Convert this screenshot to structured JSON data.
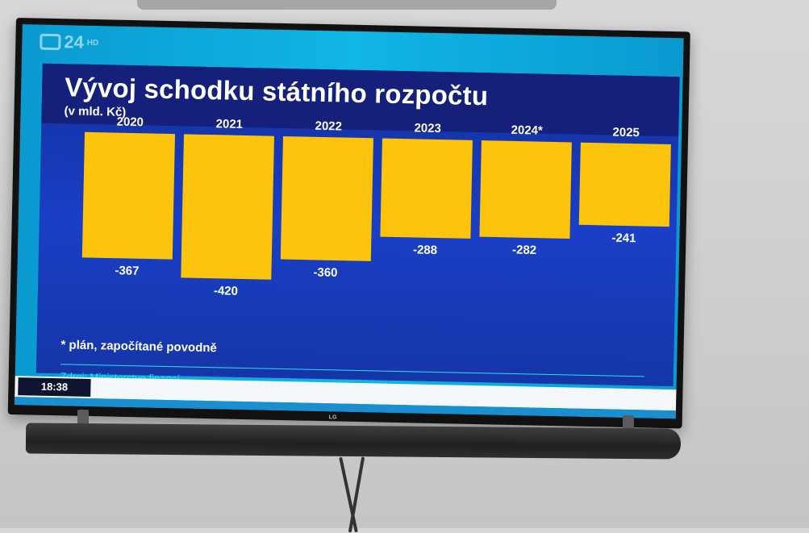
{
  "channel": {
    "logo_text": "24",
    "hd_label": "HD"
  },
  "graphic": {
    "title": "Vývoj schodku státního rozpočtu",
    "subtitle": "(v mld. Kč)",
    "footnote": "* plán, započítané povodně",
    "source": "Zdroj: Ministerstvo financí"
  },
  "ticker": {
    "time": "18:38"
  },
  "colors": {
    "bar": "#fcc40c",
    "panel": "#1a3fc6",
    "title_band": "#14207a",
    "accent_cyan": "#2de0f0"
  },
  "chart_data": {
    "type": "bar",
    "title": "Vývoj schodku státního rozpočtu",
    "subtitle": "(v mld. Kč)",
    "categories": [
      "2020",
      "2021",
      "2022",
      "2023",
      "2024*",
      "2025"
    ],
    "values": [
      -367,
      -420,
      -360,
      -288,
      -282,
      -241
    ],
    "value_labels": [
      "-367",
      "-420",
      "-360",
      "-288",
      "-282",
      "-241"
    ],
    "ylim": [
      -420,
      0
    ],
    "xlabel": "",
    "ylabel": "",
    "grid": false
  }
}
